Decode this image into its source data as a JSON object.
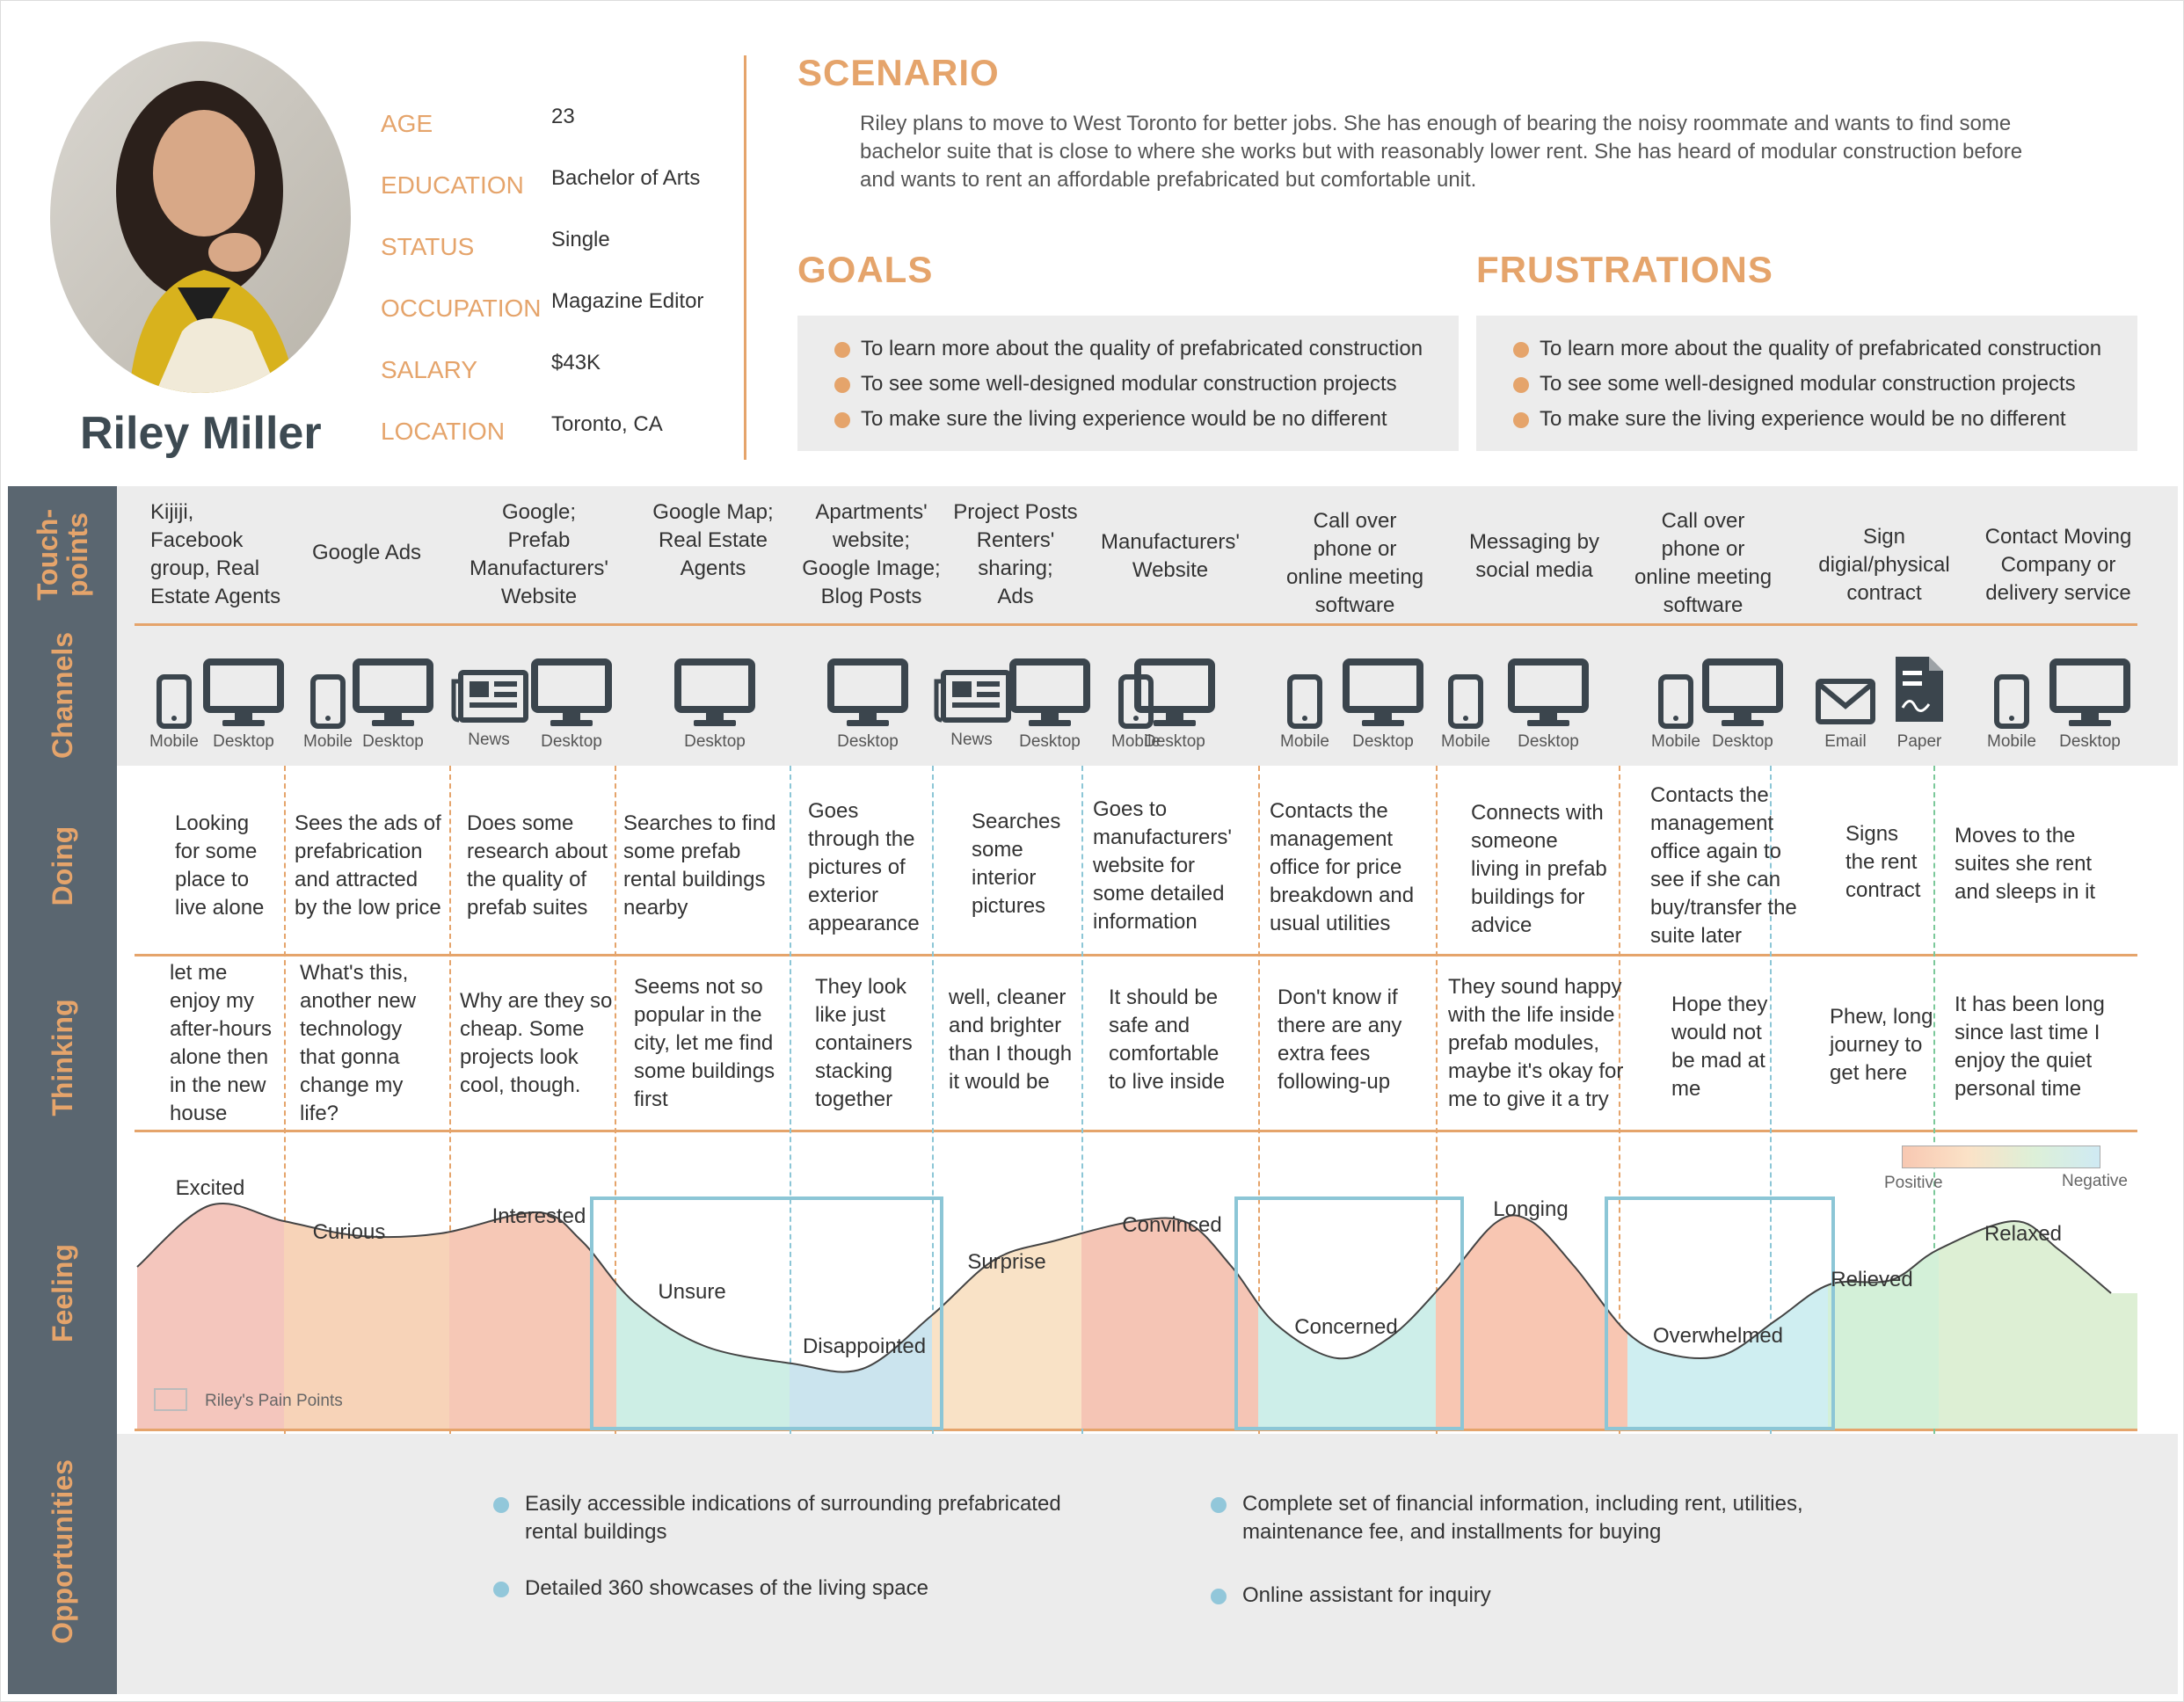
{
  "persona": {
    "name": "Riley Miller",
    "fields": [
      {
        "label": "AGE",
        "value": "23"
      },
      {
        "label": "EDUCATION",
        "value": "Bachelor of Arts"
      },
      {
        "label": "STATUS",
        "value": "Single"
      },
      {
        "label": "OCCUPATION",
        "value": "Magazine Editor"
      },
      {
        "label": "SALARY",
        "value": "$43K"
      },
      {
        "label": "LOCATION",
        "value": "Toronto, CA"
      }
    ]
  },
  "scenario": {
    "title": "SCENARIO",
    "text": "Riley plans to move to West Toronto for better jobs. She has enough of bearing the noisy roommate and wants to find some bachelor suite that is close to where she works but with reasonably lower rent. She has heard of modular construction before and wants to rent an affordable prefabricated but comfortable unit."
  },
  "goals": {
    "title": "GOALS",
    "items": [
      "To learn more about the quality of prefabricated construction",
      "To see some well-designed modular construction projects",
      "To make sure the living experience would be no different"
    ]
  },
  "frustrations": {
    "title": "FRUSTRATIONS",
    "items": [
      "To learn more about the quality of prefabricated construction",
      "To see some well-designed modular construction projects",
      "To make sure the living experience would be no different"
    ]
  },
  "rows": {
    "touchpoints": "Touch-\npoints",
    "channels": "Channels",
    "doing": "Doing",
    "thinking": "Thinking",
    "feeling": "Feeling",
    "opportunities": "Opportunities"
  },
  "touchpoints": [
    "Kijiji,\nFacebook\ngroup, Real\nEstate Agents",
    "Google Ads",
    "Google;\nPrefab\nManufacturers'\nWebsite",
    "Google Map;\nReal Estate\nAgents",
    "Apartments'\nwebsite;\nGoogle Image;\nBlog Posts",
    "Project Posts\nRenters'\nsharing;\nAds",
    "Manufacturers'\nWebsite",
    "Call over\nphone or\nonline meeting\nsoftware",
    "Messaging by\nsocial media",
    "Call over\nphone or\nonline meeting\nsoftware",
    "Sign\ndigial/physical\ncontract",
    "Contact Moving\nCompany or\ndelivery service"
  ],
  "channels": [
    {
      "icon": "mobile-icon",
      "label": "Mobile"
    },
    {
      "icon": "desktop-icon",
      "label": "Desktop"
    },
    {
      "icon": "mobile-icon",
      "label": "Mobile"
    },
    {
      "icon": "desktop-icon",
      "label": "Desktop"
    },
    {
      "icon": "news-icon",
      "label": "News"
    },
    {
      "icon": "desktop-icon",
      "label": "Desktop"
    },
    {
      "icon": "desktop-icon",
      "label": "Desktop"
    },
    {
      "icon": "desktop-icon",
      "label": "Desktop"
    },
    {
      "icon": "news-icon",
      "label": "News"
    },
    {
      "icon": "desktop-icon",
      "label": "Desktop"
    },
    {
      "icon": "mobile-icon",
      "label": "Mobile"
    },
    {
      "icon": "desktop-icon",
      "label": "Desktop"
    },
    {
      "icon": "mobile-icon",
      "label": "Mobile"
    },
    {
      "icon": "desktop-icon",
      "label": "Desktop"
    },
    {
      "icon": "mobile-icon",
      "label": "Mobile"
    },
    {
      "icon": "desktop-icon",
      "label": "Desktop"
    },
    {
      "icon": "mobile-icon",
      "label": "Mobile"
    },
    {
      "icon": "desktop-icon",
      "label": "Desktop"
    },
    {
      "icon": "email-icon",
      "label": "Email"
    },
    {
      "icon": "paper-icon",
      "label": "Paper"
    },
    {
      "icon": "mobile-icon",
      "label": "Mobile"
    },
    {
      "icon": "desktop-icon",
      "label": "Desktop"
    }
  ],
  "doing": [
    "Looking\nfor some\nplace to\nlive alone",
    "Sees the ads of\nprefabrication\nand attracted\nby the low price",
    "Does some\nresearch about\nthe quality of\nprefab suites",
    "Searches to find\nsome prefab\nrental buildings\nnearby",
    "Goes\nthrough the\npictures of\nexterior\nappearance",
    "Searches\nsome\ninterior\npictures",
    "Goes to\nmanufacturers'\nwebsite for\nsome detailed\ninformation",
    "Contacts the\nmanagement\noffice for price\nbreakdown and\nusual utilities",
    "Connects with\nsomeone\nliving in prefab\nbuildings for\nadvice",
    "Contacts the\nmanagement\noffice again to\nsee if she can\nbuy/transfer the\nsuite later",
    "Signs\nthe rent\ncontract",
    "Moves to the\nsuites she rent\nand sleeps in it"
  ],
  "thinking": [
    "let me\nenjoy my\nafter-hours\nalone then\nin the new\nhouse",
    "What's this,\nanother new\ntechnology\nthat gonna\nchange my\nlife?",
    "Why are they so\ncheap. Some\nprojects look\ncool, though.",
    "Seems not so\npopular in the\ncity, let me find\nsome buildings\nfirst",
    "They look\nlike just\ncontainers\nstacking\ntogether",
    "well, cleaner\nand brighter\nthan I though\nit would be",
    "It should be\nsafe and\ncomfortable\nto live inside",
    "Don't know if\nthere are any\nextra fees\nfollowing-up",
    "They sound happy\nwith the life inside\nprefab modules,\nmaybe it's okay for\nme to give it a try",
    "Hope they\nwould not\nbe mad at\nme",
    "Phew, long\njourney to\nget here",
    "It has been long\nsince last time I\nenjoy the quiet\npersonal time"
  ],
  "feelings": [
    {
      "label": "Excited",
      "color": "#f4c6bd"
    },
    {
      "label": "Curious",
      "color": "#f7d3b8"
    },
    {
      "label": "Interested",
      "color": "#f6c8b6"
    },
    {
      "label": "Unsure",
      "color": "#cdeee5"
    },
    {
      "label": "Disappointed",
      "color": "#cbe4ee"
    },
    {
      "label": "Surprise",
      "color": "#f9e2c6"
    },
    {
      "label": "Convinced",
      "color": "#f5c5b5"
    },
    {
      "label": "Concerned",
      "color": "#cdeee9"
    },
    {
      "label": "Longing",
      "color": "#f8c6b2"
    },
    {
      "label": "Overwhelmed",
      "color": "#cfeef1"
    },
    {
      "label": "Relieved",
      "color": "#d3f0d8"
    },
    {
      "label": "Relaxed",
      "color": "#ddefd4"
    }
  ],
  "legend": {
    "positive": "Positive",
    "negative": "Negative",
    "pain_points": "Riley's Pain Points"
  },
  "opportunities": [
    "Easily accessible indications of surrounding prefabricated\nrental buildings",
    "Detailed 360 showcases of the living space",
    "Complete set of financial information, including rent, utilities,\nmaintenance fee, and installments for buying",
    "Online assistant for inquiry"
  ],
  "colors": {
    "accent": "#e5a46b",
    "sidebar": "#5a6670",
    "band": "#ececec",
    "pain_box": "#8cc6d6",
    "icon": "#3b454d"
  }
}
